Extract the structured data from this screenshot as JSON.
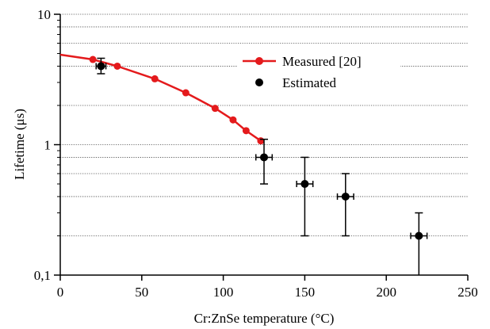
{
  "chart_data": {
    "type": "scatter",
    "xlabel": "Cr:ZnSe temperature (°C)",
    "ylabel": "Lifetime (μs)",
    "xlim": [
      0,
      250
    ],
    "ylim": [
      0.1,
      10
    ],
    "yscale": "log",
    "x_ticks": [
      "0",
      "50",
      "100",
      "150",
      "200",
      "250"
    ],
    "y_ticks": [
      {
        "value": 10,
        "label": "10"
      },
      {
        "value": 1,
        "label": "1"
      },
      {
        "value": 0.1,
        "label": "0,1"
      }
    ],
    "gridlines_y": [
      8,
      6,
      4,
      2,
      0.8,
      0.6,
      0.4,
      0.2
    ],
    "legend": {
      "position": "top-right",
      "entries": [
        {
          "label": "Measured [20]",
          "color": "#e41a1c",
          "marker": "line-circle"
        },
        {
          "label": "Estimated",
          "color": "#000000",
          "marker": "circle"
        }
      ]
    },
    "series": [
      {
        "name": "Measured [20]",
        "color": "#e41a1c",
        "style": "line-markers",
        "curve_start": [
          0,
          4.9
        ],
        "points": [
          {
            "x": 20,
            "y": 4.5
          },
          {
            "x": 35,
            "y": 4.0
          },
          {
            "x": 58,
            "y": 3.2
          },
          {
            "x": 77,
            "y": 2.5
          },
          {
            "x": 95,
            "y": 1.9
          },
          {
            "x": 106,
            "y": 1.55
          },
          {
            "x": 114,
            "y": 1.28
          },
          {
            "x": 123,
            "y": 1.07
          }
        ]
      },
      {
        "name": "Estimated",
        "color": "#000000",
        "style": "markers-errorbars",
        "points": [
          {
            "x": 25,
            "y": 4.0,
            "ylo": 3.5,
            "yhi": 4.6,
            "xerr": 3
          },
          {
            "x": 125,
            "y": 0.8,
            "ylo": 0.5,
            "yhi": 1.1,
            "xerr": 5
          },
          {
            "x": 150,
            "y": 0.5,
            "ylo": 0.2,
            "yhi": 0.8,
            "xerr": 5
          },
          {
            "x": 175,
            "y": 0.4,
            "ylo": 0.2,
            "yhi": 0.6,
            "xerr": 5
          },
          {
            "x": 220,
            "y": 0.2,
            "ylo": 0.1,
            "yhi": 0.3,
            "xerr": 5
          }
        ]
      }
    ]
  }
}
